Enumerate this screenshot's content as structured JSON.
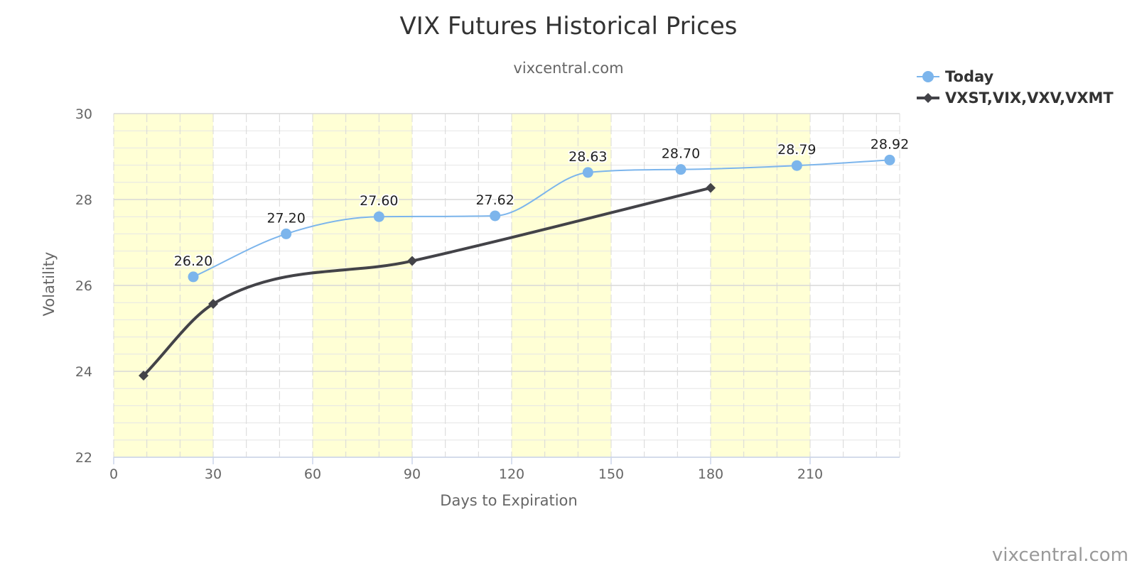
{
  "chart_data": {
    "type": "line",
    "title": "VIX Futures Historical Prices",
    "subtitle": "vixcentral.com",
    "xlabel": "Days to Expiration",
    "ylabel": "Volatility",
    "xlim": [
      0,
      237
    ],
    "ylim": [
      22,
      30
    ],
    "x_ticks": [
      0,
      30,
      60,
      90,
      120,
      150,
      180,
      210
    ],
    "y_ticks": [
      22,
      24,
      26,
      28,
      30
    ],
    "grid": true,
    "legend_position": "top-right",
    "shaded_bands": [
      [
        0,
        30
      ],
      [
        60,
        90
      ],
      [
        120,
        150
      ],
      [
        180,
        210
      ]
    ],
    "series": [
      {
        "name": "Today",
        "color": "#7cb5ec",
        "marker": "circle",
        "points": [
          {
            "x": 24,
            "y": 26.2,
            "label": "26.20"
          },
          {
            "x": 52,
            "y": 27.2,
            "label": "27.20"
          },
          {
            "x": 80,
            "y": 27.6,
            "label": "27.60"
          },
          {
            "x": 115,
            "y": 27.62,
            "label": "27.62"
          },
          {
            "x": 143,
            "y": 28.63,
            "label": "28.63"
          },
          {
            "x": 171,
            "y": 28.7,
            "label": "28.70"
          },
          {
            "x": 206,
            "y": 28.79,
            "label": "28.79"
          },
          {
            "x": 234,
            "y": 28.92,
            "label": "28.92"
          }
        ]
      },
      {
        "name": "VXST,VIX,VXV,VXMT",
        "color": "#434348",
        "marker": "diamond",
        "points": [
          {
            "x": 9,
            "y": 23.9
          },
          {
            "x": 30,
            "y": 25.57
          },
          {
            "x": 90,
            "y": 26.57
          },
          {
            "x": 180,
            "y": 28.27
          }
        ]
      }
    ]
  },
  "credit": "vixcentral.com"
}
